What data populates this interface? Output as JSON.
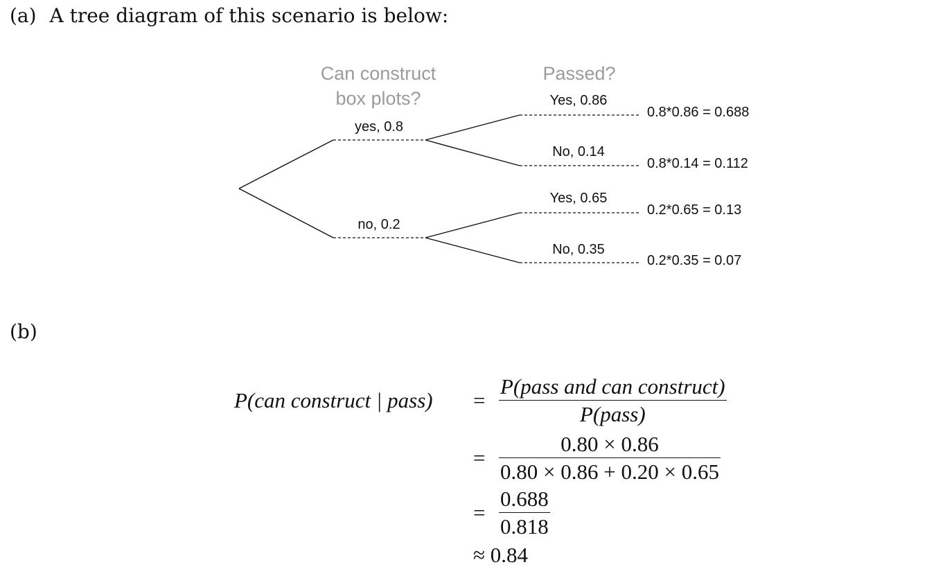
{
  "part_a": {
    "label": "(a)",
    "intro": "A tree diagram of this scenario is below:"
  },
  "tree": {
    "header_first_line1": "Can construct",
    "header_first_line2": "box plots?",
    "header_second": "Passed?",
    "first_branches": [
      {
        "label": "yes,  0.8",
        "probability": 0.8
      },
      {
        "label": "no,  0.2",
        "probability": 0.2
      }
    ],
    "second_branches": [
      {
        "label": "Yes,  0.86",
        "result": "0.8*0.86 = 0.688"
      },
      {
        "label": "No,  0.14",
        "result": "0.8*0.14 = 0.112"
      },
      {
        "label": "Yes,  0.65",
        "result": "0.2*0.65 = 0.13"
      },
      {
        "label": "No,  0.35",
        "result": "0.2*0.35 = 0.07"
      }
    ]
  },
  "part_b": {
    "label": "(b)",
    "lhs": "P(can construct | pass)",
    "eq1_num": "P(pass and can construct)",
    "eq1_den": "P(pass)",
    "eq2_num": "0.80 × 0.86",
    "eq2_den": "0.80 × 0.86 + 0.20 × 0.65",
    "eq3_num": "0.688",
    "eq3_den": "0.818",
    "equals": "=",
    "approx": "≈ 0.84"
  }
}
